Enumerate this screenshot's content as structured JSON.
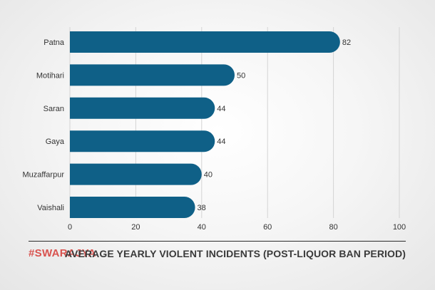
{
  "chart_data": {
    "type": "bar",
    "orientation": "horizontal",
    "categories": [
      "Patna",
      "Motihari",
      "Saran",
      "Gaya",
      "Muzaffarpur",
      "Vaishali"
    ],
    "values": [
      82,
      50,
      44,
      44,
      40,
      38
    ],
    "value_labels": [
      "82",
      "50",
      "44",
      "44",
      "40",
      "38"
    ],
    "title": "AVERAGE YEARLY VIOLENT INCIDENTS (POST-LIQUOR BAN PERIOD)",
    "xlim": [
      0,
      100
    ],
    "xticks": [
      0,
      20,
      40,
      60,
      80,
      100
    ],
    "xtick_labels": [
      "0",
      "20",
      "40",
      "60",
      "80",
      "100"
    ],
    "grid": true,
    "legend": "none",
    "bar_color": "#0f6087"
  },
  "footer": {
    "brand": "#SWARAJYA",
    "brand_color": "#d9534f",
    "title": "AVERAGE YEARLY VIOLENT INCIDENTS (POST-LIQUOR BAN PERIOD)"
  }
}
